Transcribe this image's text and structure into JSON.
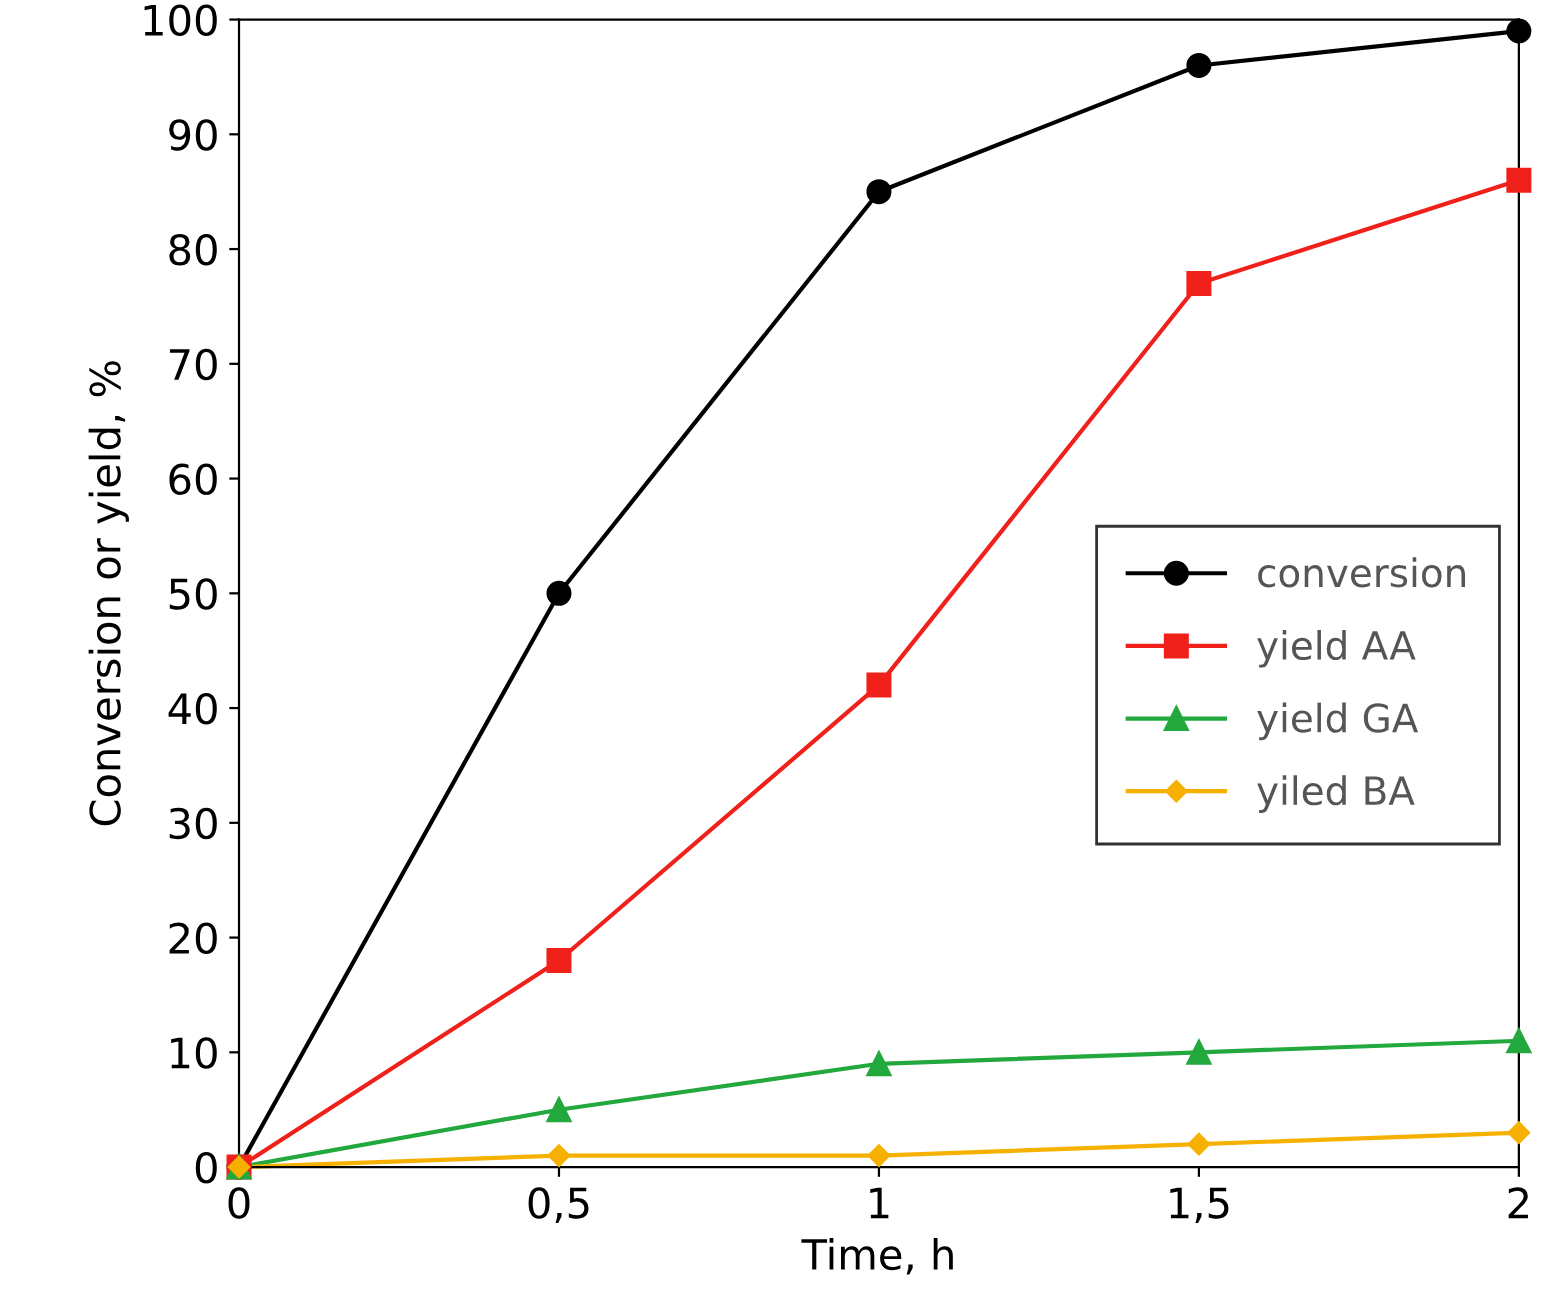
{
  "chart_data": {
    "type": "line",
    "xlabel": "Time, h",
    "ylabel": "Conversion or yield, %",
    "x": [
      0,
      0.5,
      1,
      1.5,
      2
    ],
    "series": [
      {
        "name": "conversion",
        "color": "#000000",
        "marker": "circle",
        "values": [
          0,
          50,
          85,
          96,
          99
        ]
      },
      {
        "name": "yield AA",
        "color": "#f0201a",
        "marker": "square",
        "values": [
          0,
          18,
          42,
          77,
          86
        ]
      },
      {
        "name": "yield GA",
        "color": "#22a83c",
        "marker": "triangle",
        "values": [
          0,
          5,
          9,
          10,
          11
        ]
      },
      {
        "name": "yiled BA",
        "color": "#f5b000",
        "marker": "diamond",
        "values": [
          0,
          1,
          1,
          2,
          3
        ]
      }
    ],
    "xlim": [
      0,
      2
    ],
    "ylim": [
      0,
      100
    ],
    "xticks": [
      0,
      {
        "value": 0.5,
        "label": "0,5"
      },
      1,
      {
        "value": 1.5,
        "label": "1,5"
      },
      2
    ],
    "yticks": [
      0,
      10,
      20,
      30,
      40,
      50,
      60,
      70,
      80,
      90,
      100
    ],
    "grid": false,
    "legend": "right",
    "line_style": "solid"
  }
}
